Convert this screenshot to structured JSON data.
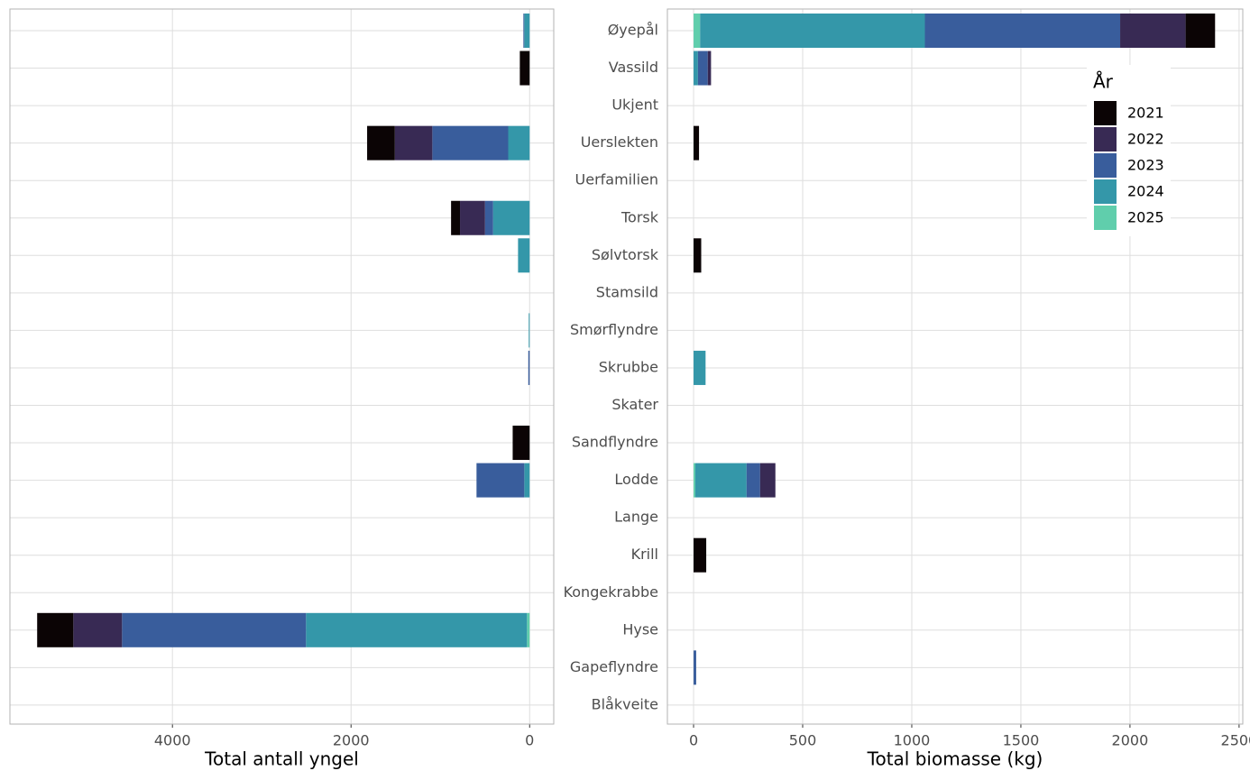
{
  "chart_data": [
    {
      "type": "bar",
      "orientation": "horizontal",
      "stacked": true,
      "xlabel": "Total antall yngel",
      "xlim": [
        5820,
        -270
      ],
      "xticks": [
        4000,
        2000,
        0
      ],
      "grid": true,
      "series": [
        {
          "color": "#0b0405",
          "values": [
            null,
            110,
            null,
            310,
            null,
            100,
            null,
            null,
            null,
            null,
            null,
            190,
            null,
            null,
            null,
            null,
            405,
            null,
            null
          ]
        },
        {
          "color": "#382a54",
          "values": [
            null,
            null,
            null,
            420,
            null,
            280,
            null,
            null,
            null,
            null,
            null,
            null,
            null,
            null,
            null,
            null,
            545,
            null,
            null
          ]
        },
        {
          "color": "#395d9c",
          "values": [
            10,
            null,
            null,
            850,
            null,
            90,
            null,
            null,
            null,
            15,
            null,
            null,
            535,
            null,
            null,
            null,
            2060,
            null,
            null
          ]
        },
        {
          "color": "#3497a9",
          "values": [
            60,
            null,
            null,
            240,
            null,
            410,
            130,
            null,
            10,
            null,
            null,
            null,
            60,
            null,
            null,
            null,
            2475,
            null,
            null
          ]
        },
        {
          "color": "#60ceac",
          "values": [
            null,
            null,
            null,
            null,
            null,
            null,
            null,
            null,
            null,
            null,
            null,
            null,
            null,
            null,
            null,
            null,
            30,
            null,
            null
          ]
        }
      ]
    },
    {
      "type": "bar",
      "orientation": "horizontal",
      "stacked": true,
      "xlabel": "Total biomasse (kg)",
      "categories": [
        "Øyepål",
        "Vassild",
        "Ukjent",
        "Uerslekten",
        "Uerfamilien",
        "Torsk",
        "Sølvtorsk",
        "Stamsild",
        "Smørflyndre",
        "Skrubbe",
        "Skater",
        "Sandflyndre",
        "Lodde",
        "Lange",
        "Krill",
        "Kongekrabbe",
        "Hyse",
        "Gapeflyndre",
        "Blåkveite"
      ],
      "xlim": [
        -120,
        2517
      ],
      "xticks": [
        0,
        500,
        1000,
        1500,
        2000,
        2500
      ],
      "grid": true,
      "legend_title": "År",
      "legend": "top-right",
      "series": [
        {
          "name": "2021",
          "color": "#0b0405",
          "values": [
            135,
            null,
            null,
            25,
            null,
            null,
            35,
            null,
            null,
            null,
            null,
            null,
            null,
            null,
            58,
            null,
            null,
            null,
            null
          ]
        },
        {
          "name": "2022",
          "color": "#382a54",
          "values": [
            300,
            15,
            null,
            null,
            null,
            null,
            null,
            null,
            null,
            null,
            null,
            null,
            70,
            null,
            null,
            null,
            null,
            null,
            null
          ]
        },
        {
          "name": "2023",
          "color": "#395d9c",
          "values": [
            895,
            45,
            null,
            null,
            null,
            null,
            null,
            null,
            null,
            null,
            null,
            null,
            62,
            null,
            null,
            null,
            null,
            12,
            null
          ]
        },
        {
          "name": "2024",
          "color": "#3497a9",
          "values": [
            1030,
            20,
            null,
            null,
            null,
            null,
            null,
            null,
            null,
            55,
            null,
            null,
            235,
            null,
            null,
            null,
            null,
            null,
            null
          ]
        },
        {
          "name": "2025",
          "color": "#60ceac",
          "values": [
            30,
            null,
            null,
            null,
            null,
            null,
            null,
            null,
            null,
            null,
            null,
            null,
            8,
            null,
            null,
            null,
            null,
            null,
            null
          ]
        }
      ]
    }
  ]
}
